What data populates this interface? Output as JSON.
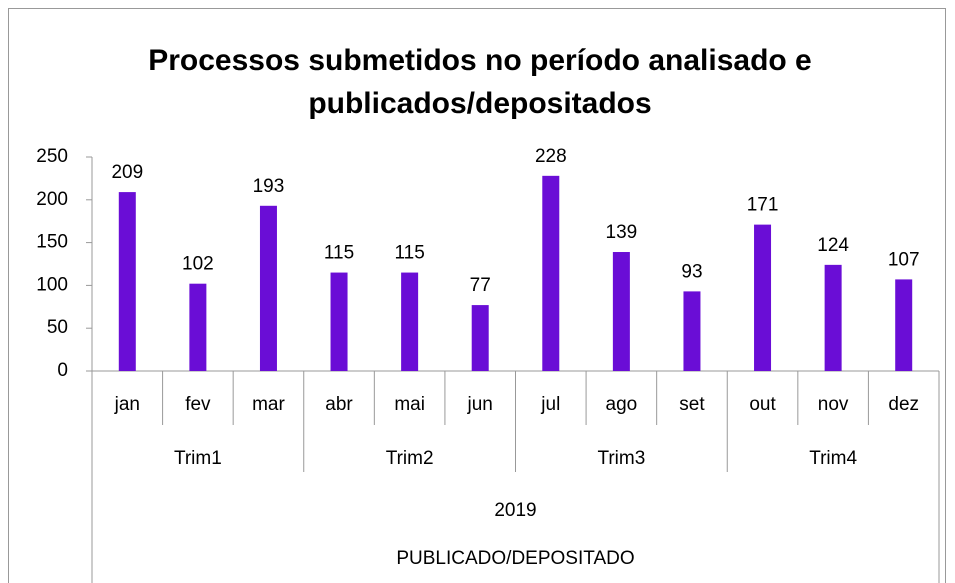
{
  "chart_data": {
    "type": "bar",
    "title": [
      "Processos submetidos no período analisado e",
      "publicados/depositados"
    ],
    "categories": [
      "jan",
      "fev",
      "mar",
      "abr",
      "mai",
      "jun",
      "jul",
      "ago",
      "set",
      "out",
      "nov",
      "dez"
    ],
    "values": [
      209,
      102,
      193,
      115,
      115,
      77,
      228,
      139,
      93,
      171,
      124,
      107
    ],
    "quarters": [
      "Trim1",
      "Trim2",
      "Trim3",
      "Trim4"
    ],
    "year": "2019",
    "x_label": "PUBLICADO/DEPOSITADO",
    "color": "#6a0dd6",
    "ylim": [
      0,
      250
    ],
    "yticks": [
      0,
      50,
      100,
      150,
      200,
      250
    ],
    "grid": false
  }
}
